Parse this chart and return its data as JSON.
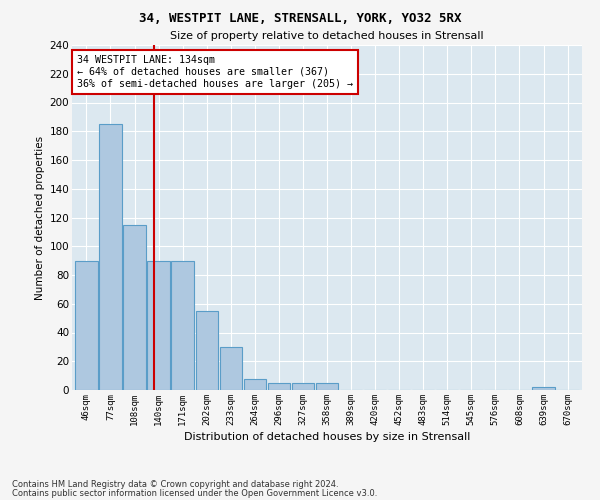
{
  "title_line1": "34, WESTPIT LANE, STRENSALL, YORK, YO32 5RX",
  "title_line2": "Size of property relative to detached houses in Strensall",
  "xlabel": "Distribution of detached houses by size in Strensall",
  "ylabel": "Number of detached properties",
  "bar_labels": [
    "46sqm",
    "77sqm",
    "108sqm",
    "140sqm",
    "171sqm",
    "202sqm",
    "233sqm",
    "264sqm",
    "296sqm",
    "327sqm",
    "358sqm",
    "389sqm",
    "420sqm",
    "452sqm",
    "483sqm",
    "514sqm",
    "545sqm",
    "576sqm",
    "608sqm",
    "639sqm",
    "670sqm"
  ],
  "bar_values": [
    90,
    185,
    115,
    90,
    90,
    55,
    30,
    8,
    5,
    5,
    5,
    0,
    0,
    0,
    0,
    0,
    0,
    0,
    0,
    2,
    0
  ],
  "bar_color": "#aec8e0",
  "bar_edge_color": "#5a9dc8",
  "bar_edge_width": 0.8,
  "vline_color": "#cc0000",
  "annotation_text": "34 WESTPIT LANE: 134sqm\n← 64% of detached houses are smaller (367)\n36% of semi-detached houses are larger (205) →",
  "annotation_box_color": "#ffffff",
  "annotation_box_edge": "#cc0000",
  "ylim": [
    0,
    240
  ],
  "yticks": [
    0,
    20,
    40,
    60,
    80,
    100,
    120,
    140,
    160,
    180,
    200,
    220,
    240
  ],
  "background_color": "#dce8f0",
  "grid_color": "#ffffff",
  "fig_bg_color": "#f5f5f5",
  "footer_line1": "Contains HM Land Registry data © Crown copyright and database right 2024.",
  "footer_line2": "Contains public sector information licensed under the Open Government Licence v3.0."
}
